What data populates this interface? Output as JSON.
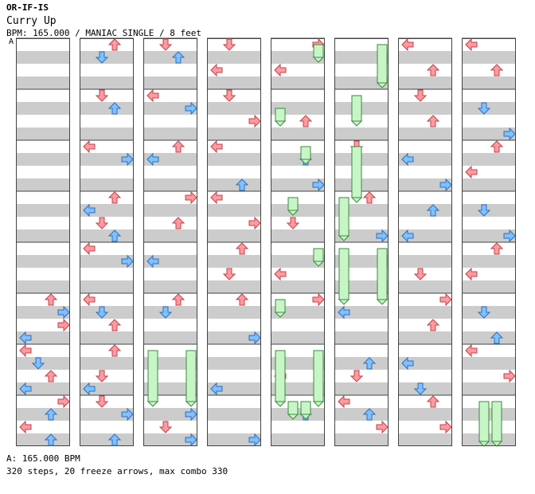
{
  "header": {
    "artist": "OR-IF-IS",
    "song_title": "Curry Up",
    "info": "BPM: 165.000 / MANIAC SINGLE / 8 feet"
  },
  "bpm_marker": "A",
  "footer": {
    "bpm_line": "A: 165.000 BPM",
    "stats_line": "320 steps, 20 freeze arrows, max combo 330"
  },
  "colors": {
    "beat_red": "#ff9aa0",
    "beat_red_stroke": "#c0404a",
    "offbeat_blue": "#7fc0ff",
    "offbeat_blue_stroke": "#2a6fc0",
    "freeze_fill": "#c8f5c8",
    "freeze_stroke": "#3a8a3a",
    "stripe": "#cccccc"
  },
  "chart_data": {
    "type": "step-chart",
    "lanes": [
      "left",
      "down",
      "up",
      "right"
    ],
    "measures_per_column": 8,
    "arrows": [
      [
        0,
        5,
        0,
        "up"
      ],
      [
        0,
        5,
        2,
        "right"
      ],
      [
        0,
        6,
        0,
        "left"
      ],
      [
        0,
        6,
        2,
        "down"
      ],
      [
        0,
        6,
        4,
        "up"
      ],
      [
        0,
        6,
        6,
        "left"
      ],
      [
        0,
        5,
        4,
        "right"
      ],
      [
        0,
        5,
        6,
        "left"
      ],
      [
        0,
        7,
        0,
        "right"
      ],
      [
        0,
        7,
        2,
        "up"
      ],
      [
        0,
        7,
        4,
        "left"
      ],
      [
        0,
        7,
        6,
        "up"
      ],
      [
        1,
        0,
        0,
        "up"
      ],
      [
        1,
        0,
        2,
        "down"
      ],
      [
        1,
        1,
        0,
        "down"
      ],
      [
        1,
        1,
        2,
        "up"
      ],
      [
        1,
        2,
        0,
        "left"
      ],
      [
        1,
        2,
        2,
        "right"
      ],
      [
        1,
        3,
        0,
        "up"
      ],
      [
        1,
        3,
        2,
        "left"
      ],
      [
        1,
        3,
        4,
        "down"
      ],
      [
        1,
        3,
        6,
        "up"
      ],
      [
        1,
        4,
        0,
        "left"
      ],
      [
        1,
        4,
        2,
        "right"
      ],
      [
        1,
        5,
        0,
        "left"
      ],
      [
        1,
        5,
        2,
        "down"
      ],
      [
        1,
        5,
        4,
        "up"
      ],
      [
        1,
        6,
        0,
        "up"
      ],
      [
        1,
        6,
        4,
        "down"
      ],
      [
        1,
        6,
        6,
        "left"
      ],
      [
        1,
        7,
        0,
        "down"
      ],
      [
        1,
        7,
        2,
        "right"
      ],
      [
        1,
        7,
        6,
        "up"
      ],
      [
        2,
        0,
        0,
        "down"
      ],
      [
        2,
        0,
        2,
        "up"
      ],
      [
        2,
        1,
        0,
        "left"
      ],
      [
        2,
        1,
        2,
        "right"
      ],
      [
        2,
        2,
        0,
        "up"
      ],
      [
        2,
        2,
        2,
        "left"
      ],
      [
        2,
        3,
        0,
        "right"
      ],
      [
        2,
        3,
        4,
        "up"
      ],
      [
        2,
        4,
        2,
        "left"
      ],
      [
        2,
        5,
        0,
        "up"
      ],
      [
        2,
        5,
        2,
        "down"
      ],
      [
        2,
        7,
        2,
        "right"
      ],
      [
        2,
        7,
        4,
        "down"
      ],
      [
        2,
        7,
        6,
        "right"
      ],
      [
        3,
        0,
        0,
        "down"
      ],
      [
        3,
        0,
        4,
        "left"
      ],
      [
        3,
        1,
        0,
        "down"
      ],
      [
        3,
        1,
        4,
        "right"
      ],
      [
        3,
        2,
        0,
        "left"
      ],
      [
        3,
        2,
        6,
        "up"
      ],
      [
        3,
        3,
        0,
        "left"
      ],
      [
        3,
        3,
        4,
        "right"
      ],
      [
        3,
        4,
        0,
        "up"
      ],
      [
        3,
        4,
        4,
        "down"
      ],
      [
        3,
        5,
        0,
        "up"
      ],
      [
        3,
        5,
        6,
        "right"
      ],
      [
        3,
        6,
        6,
        "left"
      ],
      [
        3,
        7,
        6,
        "right"
      ],
      [
        4,
        0,
        0,
        "right"
      ],
      [
        4,
        0,
        4,
        "left"
      ],
      [
        4,
        1,
        4,
        "up"
      ],
      [
        4,
        2,
        2,
        "up"
      ],
      [
        4,
        2,
        6,
        "right"
      ],
      [
        4,
        3,
        4,
        "down"
      ],
      [
        4,
        4,
        4,
        "left"
      ],
      [
        4,
        5,
        0,
        "right"
      ],
      [
        4,
        6,
        4,
        "left"
      ],
      [
        4,
        7,
        2,
        "up"
      ],
      [
        5,
        2,
        0,
        "down"
      ],
      [
        5,
        3,
        0,
        "up"
      ],
      [
        5,
        3,
        6,
        "right"
      ],
      [
        5,
        5,
        2,
        "left"
      ],
      [
        5,
        6,
        2,
        "up"
      ],
      [
        5,
        6,
        4,
        "down"
      ],
      [
        5,
        7,
        0,
        "left"
      ],
      [
        5,
        7,
        2,
        "up"
      ],
      [
        5,
        7,
        4,
        "right"
      ],
      [
        6,
        0,
        0,
        "left"
      ],
      [
        6,
        0,
        4,
        "up"
      ],
      [
        6,
        1,
        0,
        "down"
      ],
      [
        6,
        1,
        4,
        "up"
      ],
      [
        6,
        2,
        2,
        "left"
      ],
      [
        6,
        2,
        6,
        "right"
      ],
      [
        6,
        3,
        2,
        "up"
      ],
      [
        6,
        3,
        6,
        "left"
      ],
      [
        6,
        4,
        4,
        "down"
      ],
      [
        6,
        5,
        0,
        "right"
      ],
      [
        6,
        5,
        4,
        "up"
      ],
      [
        6,
        6,
        2,
        "left"
      ],
      [
        6,
        6,
        6,
        "down"
      ],
      [
        6,
        7,
        0,
        "up"
      ],
      [
        6,
        7,
        4,
        "right"
      ],
      [
        7,
        0,
        0,
        "left"
      ],
      [
        7,
        0,
        4,
        "up"
      ],
      [
        7,
        1,
        2,
        "down"
      ],
      [
        7,
        1,
        6,
        "right"
      ],
      [
        7,
        2,
        0,
        "up"
      ],
      [
        7,
        2,
        4,
        "left"
      ],
      [
        7,
        3,
        2,
        "down"
      ],
      [
        7,
        3,
        6,
        "right"
      ],
      [
        7,
        4,
        0,
        "up"
      ],
      [
        7,
        4,
        4,
        "left"
      ],
      [
        7,
        5,
        2,
        "down"
      ],
      [
        7,
        5,
        6,
        "up"
      ],
      [
        7,
        6,
        0,
        "left"
      ],
      [
        7,
        6,
        4,
        "right"
      ]
    ]
  }
}
